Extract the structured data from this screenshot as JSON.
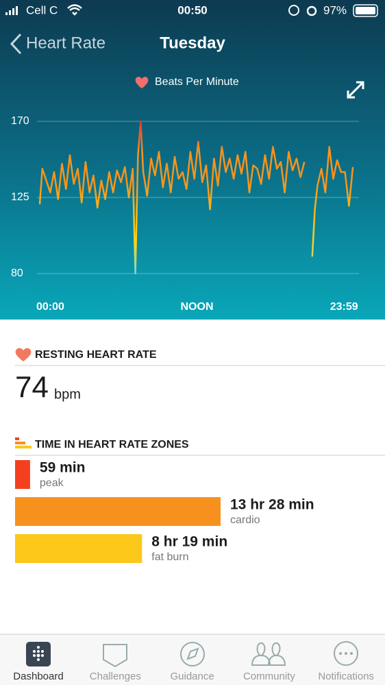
{
  "status_bar": {
    "carrier": "Cell C",
    "time": "00:50",
    "battery": "97%"
  },
  "header": {
    "back": "Heart Rate",
    "title": "Tuesday"
  },
  "chart_data": {
    "type": "line",
    "subtitle": "Beats Per Minute",
    "x": [
      0,
      0.2,
      0.5,
      0.8,
      1.1,
      1.4,
      1.7,
      2.0,
      2.3,
      2.6,
      2.9,
      3.2,
      3.5,
      3.8,
      4.1,
      4.4,
      4.7,
      5.0,
      5.3,
      5.6,
      5.9,
      6.2,
      6.5,
      6.8,
      7.1,
      7.3,
      7.5,
      7.7,
      7.9,
      8.2,
      8.5,
      8.8,
      9.1,
      9.4,
      9.7,
      10.0,
      10.3,
      10.6,
      10.9,
      11.2,
      11.5,
      11.8,
      12.1,
      12.4,
      12.7,
      13.0,
      13.3,
      13.6,
      13.9,
      14.2,
      14.5,
      14.8,
      15.1,
      15.4,
      15.7,
      16.0,
      16.3,
      16.6,
      16.9,
      17.2,
      17.5,
      17.8,
      18.1,
      18.4,
      18.7,
      19.0,
      19.3,
      19.6,
      19.9,
      20.2,
      20.5,
      20.8,
      21.0,
      21.2,
      21.5,
      21.8,
      22.1,
      22.4,
      22.7,
      23.0,
      23.3,
      23.6,
      23.9
    ],
    "series": [
      {
        "colors": [
          "#e8352a",
          "#f7941d",
          "#f7941d",
          "#f9b81c",
          "#fcd21c",
          "#7fd6cf"
        ],
        "values": [
          121,
          142,
          135,
          128,
          140,
          124,
          145,
          130,
          150,
          133,
          142,
          122,
          146,
          128,
          138,
          119,
          135,
          124,
          140,
          128,
          141,
          134,
          143,
          125,
          142,
          80,
          150,
          170,
          140,
          126,
          148,
          138,
          152,
          131,
          145,
          128,
          149,
          136,
          140,
          130,
          152,
          136,
          158,
          134,
          144,
          118,
          148,
          132,
          155,
          140,
          148,
          136,
          150,
          139,
          152,
          128,
          144,
          142,
          133,
          150,
          136,
          155,
          142,
          146,
          128,
          152,
          141,
          148,
          137,
          146,
          null,
          90,
          118,
          132,
          142,
          128,
          155,
          136,
          147,
          140,
          140,
          120,
          143
        ]
      }
    ],
    "xlim": [
      0,
      24
    ],
    "xticks": [
      {
        "value": 0,
        "label": "00:00"
      },
      {
        "value": 12,
        "label": "NOON"
      },
      {
        "value": 23.98,
        "label": "23:59"
      }
    ],
    "ylim": [
      80,
      170
    ],
    "yticks": [
      80,
      125,
      170
    ],
    "grid": true
  },
  "resting": {
    "title": "RESTING HEART RATE",
    "value": 74,
    "unit": "bpm"
  },
  "zones": {
    "title": "TIME IN HEART RATE ZONES",
    "items": [
      {
        "minutes": 59,
        "label": "59 min",
        "name": "peak",
        "color": "#f4401f"
      },
      {
        "minutes": 808,
        "label": "13 hr 28 min",
        "name": "cardio",
        "color": "#f7911e"
      },
      {
        "minutes": 499,
        "label": "8 hr 19 min",
        "name": "fat burn",
        "color": "#fcc819"
      }
    ]
  },
  "tabs": [
    "Dashboard",
    "Challenges",
    "Guidance",
    "Community",
    "Notifications"
  ]
}
